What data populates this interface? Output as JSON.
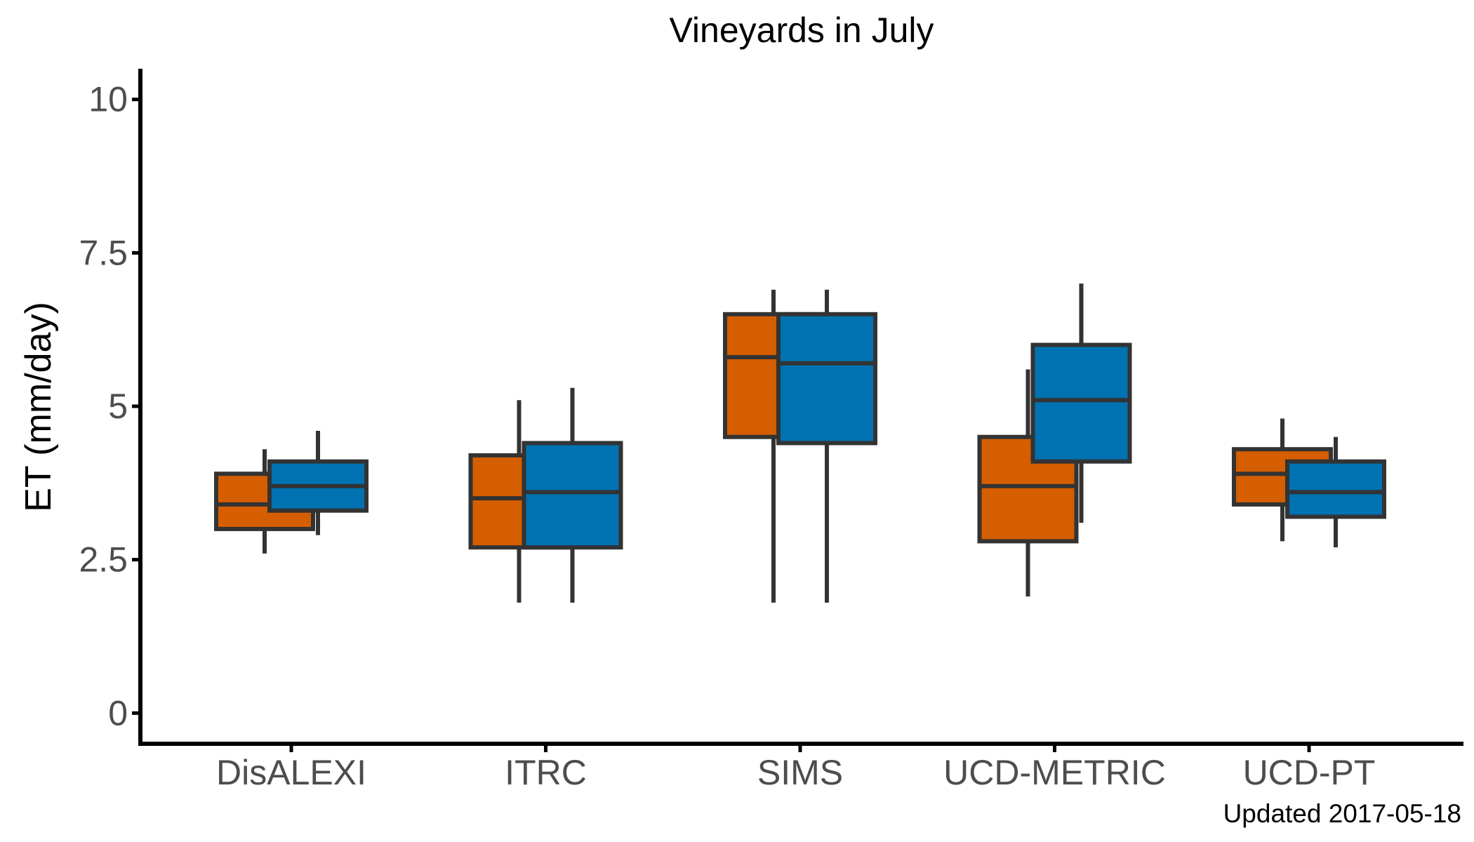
{
  "chart_data": {
    "type": "boxplot",
    "title": "Vineyards in July",
    "xlabel": "",
    "ylabel": "ET (mm/day)",
    "caption": "Updated  2017-05-18",
    "ylim": [
      -0.5,
      10.5
    ],
    "yticks": [
      0,
      2.5,
      5,
      7.5,
      10
    ],
    "ytick_labels": [
      "0",
      "2.5",
      "5",
      "7.5",
      "10"
    ],
    "categories": [
      "DisALEXI",
      "ITRC",
      "SIMS",
      "UCD-METRIC",
      "UCD-PT"
    ],
    "grid": false,
    "legend": "none",
    "box_outline_color": "#333333",
    "series": [
      {
        "color": "#D55E00",
        "boxes": [
          {
            "category": "DisALEXI",
            "whisker_low": 2.6,
            "q1": 3.0,
            "median": 3.4,
            "q3": 3.9,
            "whisker_high": 4.3
          },
          {
            "category": "ITRC",
            "whisker_low": 1.8,
            "q1": 2.7,
            "median": 3.5,
            "q3": 4.2,
            "whisker_high": 5.1
          },
          {
            "category": "SIMS",
            "whisker_low": 1.8,
            "q1": 4.5,
            "median": 5.8,
            "q3": 6.5,
            "whisker_high": 6.9
          },
          {
            "category": "UCD-METRIC",
            "whisker_low": 1.9,
            "q1": 2.8,
            "median": 3.7,
            "q3": 4.5,
            "whisker_high": 5.6
          },
          {
            "category": "UCD-PT",
            "whisker_low": 2.8,
            "q1": 3.4,
            "median": 3.9,
            "q3": 4.3,
            "whisker_high": 4.8
          }
        ]
      },
      {
        "color": "#0072B2",
        "boxes": [
          {
            "category": "DisALEXI",
            "whisker_low": 2.9,
            "q1": 3.3,
            "median": 3.7,
            "q3": 4.1,
            "whisker_high": 4.6
          },
          {
            "category": "ITRC",
            "whisker_low": 1.8,
            "q1": 2.7,
            "median": 3.6,
            "q3": 4.4,
            "whisker_high": 5.3
          },
          {
            "category": "SIMS",
            "whisker_low": 1.8,
            "q1": 4.4,
            "median": 5.7,
            "q3": 6.5,
            "whisker_high": 6.9
          },
          {
            "category": "UCD-METRIC",
            "whisker_low": 3.1,
            "q1": 4.1,
            "median": 5.1,
            "q3": 6.0,
            "whisker_high": 7.0
          },
          {
            "category": "UCD-PT",
            "whisker_low": 2.7,
            "q1": 3.2,
            "median": 3.6,
            "q3": 4.1,
            "whisker_high": 4.5
          }
        ]
      }
    ]
  }
}
